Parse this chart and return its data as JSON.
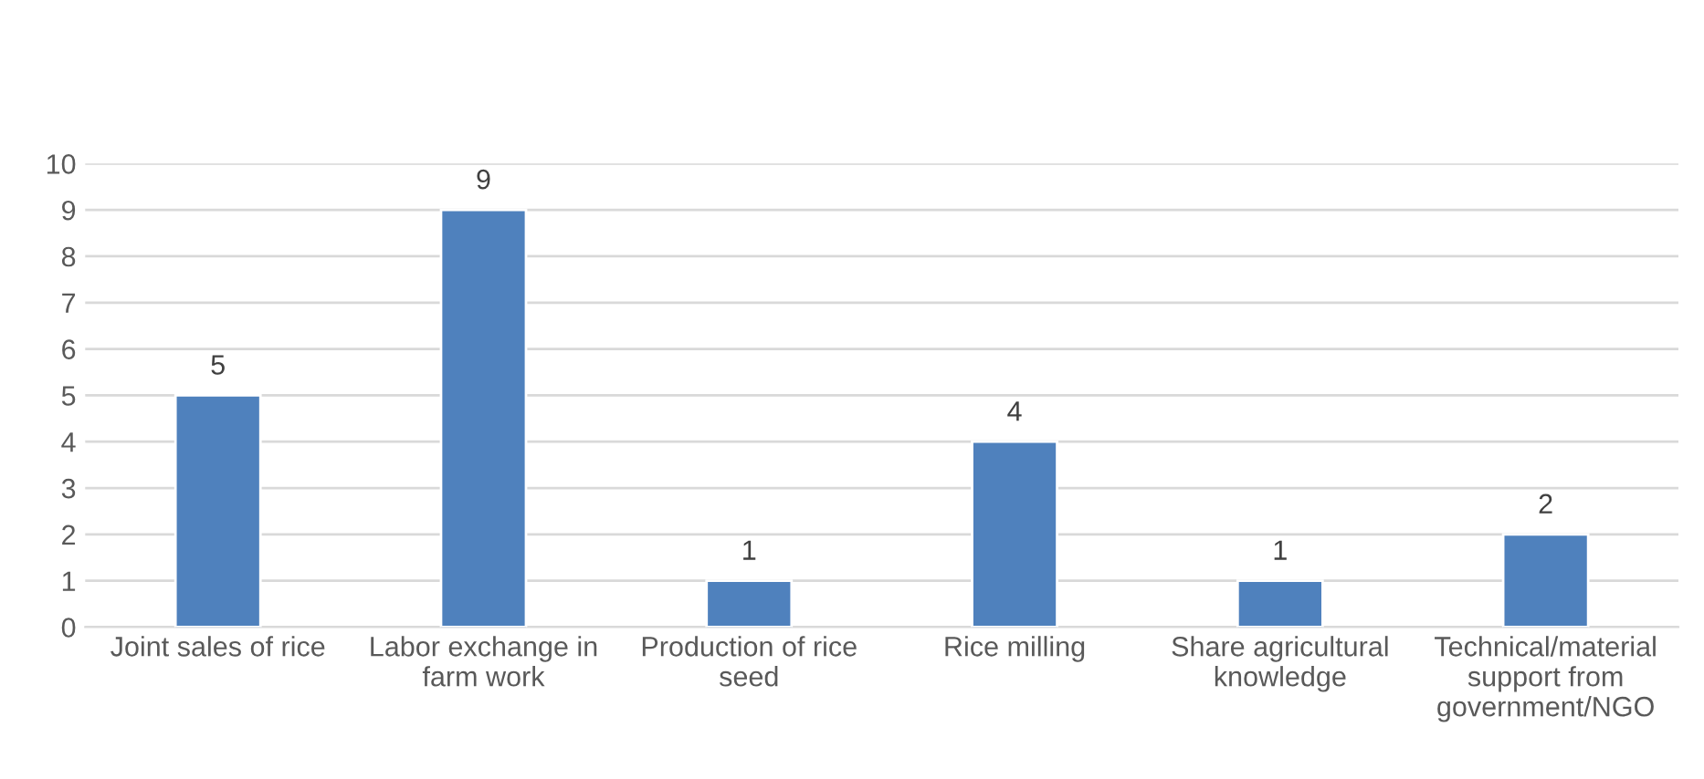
{
  "chart_data": {
    "type": "bar",
    "categories": [
      "Joint sales of rice",
      "Labor exchange in\nfarm work",
      "Production of rice\nseed",
      "Rice milling",
      "Share agricultural\nknowledge",
      "Technical/material\nsupport from\ngovernment/NGO"
    ],
    "values": [
      5,
      9,
      1,
      4,
      1,
      2
    ],
    "color": "#4f81bd",
    "ylim": [
      0,
      10
    ],
    "yticks": [
      0,
      1,
      2,
      3,
      4,
      5,
      6,
      7,
      8,
      9,
      10
    ],
    "grid": "y",
    "data_labels": true
  }
}
